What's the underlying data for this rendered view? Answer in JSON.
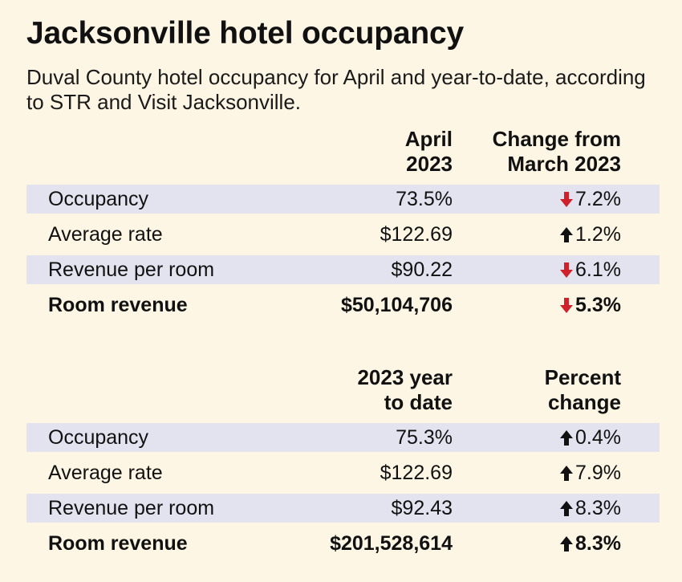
{
  "title": "Jacksonville hotel occupancy",
  "subtitle": "Duval County hotel occupancy for April and year-to-date, according to STR and Visit Jacksonville.",
  "colors": {
    "background": "#fdf6e4",
    "row_shade": "#e2e3ef",
    "down": "#d0202b",
    "up": "#111111"
  },
  "chart_data": [
    {
      "type": "table",
      "columns": [
        "",
        "April\n2023",
        "Change from\nMarch 2023"
      ],
      "rows": [
        {
          "label": "Occupancy",
          "value": "73.5%",
          "change": "7.2%",
          "direction": "down",
          "shaded": true,
          "bold": false
        },
        {
          "label": "Average rate",
          "value": "$122.69",
          "change": "1.2%",
          "direction": "up",
          "shaded": false,
          "bold": false
        },
        {
          "label": "Revenue per room",
          "value": "$90.22",
          "change": "6.1%",
          "direction": "down",
          "shaded": true,
          "bold": false
        },
        {
          "label": "Room revenue",
          "value": "$50,104,706",
          "change": "5.3%",
          "direction": "down",
          "shaded": false,
          "bold": true
        }
      ]
    },
    {
      "type": "table",
      "columns": [
        "",
        "2023 year\nto date",
        "Percent\nchange"
      ],
      "rows": [
        {
          "label": "Occupancy",
          "value": "75.3%",
          "change": "0.4%",
          "direction": "up",
          "shaded": true,
          "bold": false
        },
        {
          "label": "Average rate",
          "value": "$122.69",
          "change": "7.9%",
          "direction": "up",
          "shaded": false,
          "bold": false
        },
        {
          "label": "Revenue per room",
          "value": "$92.43",
          "change": "8.3%",
          "direction": "up",
          "shaded": true,
          "bold": false
        },
        {
          "label": "Room revenue",
          "value": "$201,528,614",
          "change": "8.3%",
          "direction": "up",
          "shaded": false,
          "bold": true
        }
      ]
    }
  ]
}
